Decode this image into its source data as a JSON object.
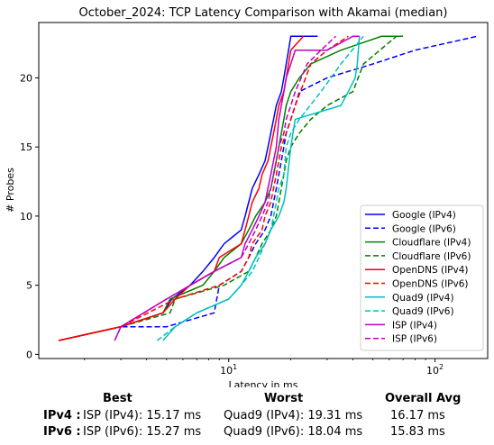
{
  "chart_data": {
    "type": "line",
    "title": "October_2024: TCP Latency Comparison with Akamai (median)",
    "xlabel": "Latency in ms",
    "ylabel": "# Probes",
    "xscale": "log",
    "xlim": [
      1.2,
      180
    ],
    "ylim": [
      -0.3,
      24
    ],
    "xticks": [
      10,
      100
    ],
    "xtick_labels": [
      "10$^{1}$",
      "10$^{2}$"
    ],
    "yticks": [
      0,
      5,
      10,
      15,
      20
    ],
    "grid": false,
    "legend_position": "lower right",
    "series": [
      {
        "name": "Google (IPv4)",
        "color": "#0000ff",
        "dash": "solid",
        "x": [
          1.5,
          3.0,
          4.8,
          5.3,
          6.5,
          7.5,
          8.5,
          9.5,
          11.5,
          12.0,
          12.5,
          13.0,
          14.0,
          15.0,
          15.5,
          16.0,
          16.5,
          17.0,
          18.0,
          18.5,
          19.0,
          19.5,
          20.0,
          21.0,
          23.0,
          27.0
        ],
        "y": [
          1,
          2,
          3,
          4,
          5,
          6,
          7,
          8,
          9,
          10,
          11,
          12,
          13,
          14,
          15,
          16,
          17,
          18,
          19,
          20,
          21,
          22,
          23,
          23,
          23,
          23
        ]
      },
      {
        "name": "Google (IPv6)",
        "color": "#0000ff",
        "dash": "dashed",
        "x": [
          1.5,
          3.0,
          5.0,
          8.5,
          9.0,
          11.5,
          12.5,
          13.5,
          15.0,
          16.0,
          16.5,
          17.0,
          17.5,
          18.0,
          18.5,
          19.0,
          20.0,
          21.0,
          22.0,
          30.0,
          50.0,
          80.0,
          160.0
        ],
        "y": [
          1,
          2,
          2,
          3,
          5,
          6,
          7,
          8,
          9,
          10,
          11,
          12,
          13,
          14,
          15,
          16,
          17,
          18,
          19,
          20,
          21,
          22,
          23
        ]
      },
      {
        "name": "Cloudflare (IPv4)",
        "color": "#008000",
        "dash": "solid",
        "x": [
          1.5,
          3.0,
          4.8,
          5.2,
          7.5,
          8.5,
          9.5,
          11.5,
          12.5,
          13.5,
          15.0,
          16.0,
          16.5,
          17.0,
          17.5,
          18.0,
          18.5,
          19.0,
          20.0,
          22.0,
          25.0,
          35.0,
          55.0,
          70.0
        ],
        "y": [
          1,
          2,
          3,
          4,
          5,
          6,
          7,
          8,
          9,
          10,
          11,
          12,
          13,
          14,
          15,
          16,
          17,
          18,
          19,
          20,
          21,
          22,
          23,
          23
        ]
      },
      {
        "name": "Cloudflare (IPv6)",
        "color": "#008000",
        "dash": "dashed",
        "x": [
          1.5,
          3.0,
          5.2,
          5.5,
          9.5,
          12.5,
          13.5,
          14.5,
          16.0,
          17.0,
          17.5,
          18.0,
          18.5,
          19.0,
          20.0,
          22.0,
          25.0,
          30.0,
          40.0,
          45.0,
          65.0
        ],
        "y": [
          1,
          2,
          3,
          4,
          5,
          6,
          7,
          8,
          9,
          10,
          11,
          12,
          13,
          14,
          15,
          16,
          17,
          18,
          19,
          21,
          23
        ]
      },
      {
        "name": "OpenDNS (IPv4)",
        "color": "#ff0000",
        "dash": "solid",
        "x": [
          1.5,
          3.0,
          4.8,
          5.5,
          6.5,
          8.5,
          9.0,
          11.5,
          12.0,
          12.5,
          13.0,
          14.0,
          14.5,
          15.5,
          16.0,
          16.5,
          17.0,
          17.5,
          18.5,
          19.0,
          20.0,
          23.0
        ],
        "y": [
          1,
          2,
          3,
          4,
          5,
          6,
          7,
          8,
          9,
          10,
          11,
          12,
          13,
          14,
          15,
          16,
          17,
          18,
          19,
          20,
          22,
          23
        ]
      },
      {
        "name": "OpenDNS (IPv6)",
        "color": "#ff0000",
        "dash": "dashed",
        "x": [
          1.5,
          3.0,
          5.5,
          9.0,
          11.5,
          12.5,
          13.0,
          14.5,
          15.0,
          16.0,
          16.5,
          17.0,
          17.5,
          18.0,
          19.0,
          20.0,
          21.0,
          25.0,
          30.0,
          38.0
        ],
        "y": [
          1,
          2,
          4,
          5,
          6,
          7,
          8,
          9,
          10,
          11,
          12,
          13,
          14,
          15,
          16,
          17,
          18,
          21,
          22,
          23
        ]
      },
      {
        "name": "Quad9 (IPv4)",
        "color": "#00bfbf",
        "dash": "solid",
        "x": [
          4.8,
          5.5,
          7.0,
          10.0,
          11.5,
          12.5,
          13.5,
          15.0,
          16.0,
          17.5,
          18.5,
          19.0,
          20.0,
          21.0,
          35.0,
          38.0,
          41.0,
          42.0,
          43.0
        ],
        "y": [
          1,
          2,
          3,
          4,
          5,
          6,
          7,
          8,
          9,
          10,
          11,
          12,
          15,
          17,
          18,
          19,
          20,
          21,
          23
        ]
      },
      {
        "name": "Quad9 (IPv6)",
        "color": "#00bfbf",
        "dash": "dashed",
        "x": [
          4.5,
          5.5,
          7.0,
          10.0,
          11.5,
          13.0,
          14.0,
          15.0,
          16.0,
          16.5,
          17.0,
          17.5,
          18.5,
          19.0,
          20.0,
          22.0,
          28.0,
          35.0,
          45.0
        ],
        "y": [
          1,
          2,
          3,
          4,
          5,
          6,
          7,
          8,
          9,
          10,
          11,
          12,
          13,
          15,
          16,
          17,
          19,
          21,
          23
        ]
      },
      {
        "name": "ISP (IPv4)",
        "color": "#bf00bf",
        "dash": "solid",
        "x": [
          2.8,
          3.0,
          5.0,
          8.5,
          11.5,
          12.0,
          13.0,
          14.0,
          15.0,
          16.0,
          17.0,
          17.5,
          18.0,
          18.5,
          19.0,
          20.0,
          21.0,
          30.0,
          40.0,
          43.0
        ],
        "y": [
          1,
          2,
          4,
          6,
          7,
          8,
          9,
          10,
          11,
          13,
          15,
          17,
          18,
          19,
          20,
          21,
          22,
          22,
          23,
          23
        ]
      },
      {
        "name": "ISP (IPv6)",
        "color": "#bf00bf",
        "dash": "dashed",
        "x": [
          2.8,
          3.0,
          5.0,
          8.5,
          11.5,
          12.5,
          13.5,
          14.5,
          15.5,
          16.0,
          16.5,
          17.0,
          17.5,
          18.5,
          19.0,
          20.0,
          21.0,
          24.0,
          28.0,
          33.0
        ],
        "y": [
          1,
          2,
          4,
          6,
          7,
          8,
          9,
          10,
          11,
          12,
          13,
          14,
          15,
          16,
          17,
          18,
          19,
          21,
          22,
          23
        ]
      }
    ]
  },
  "summary": {
    "headers": {
      "best": "Best",
      "worst": "Worst",
      "avg": "Overall Avg"
    },
    "rows": [
      {
        "label": "IPv4 :",
        "best": "ISP (IPv4): 15.17 ms",
        "worst": "Quad9 (IPv4): 19.31 ms",
        "avg": "16.17 ms"
      },
      {
        "label": "IPv6 :",
        "best": "ISP (IPv6): 15.27 ms",
        "worst": "Quad9 (IPv6): 18.04 ms",
        "avg": "15.83 ms"
      }
    ]
  }
}
